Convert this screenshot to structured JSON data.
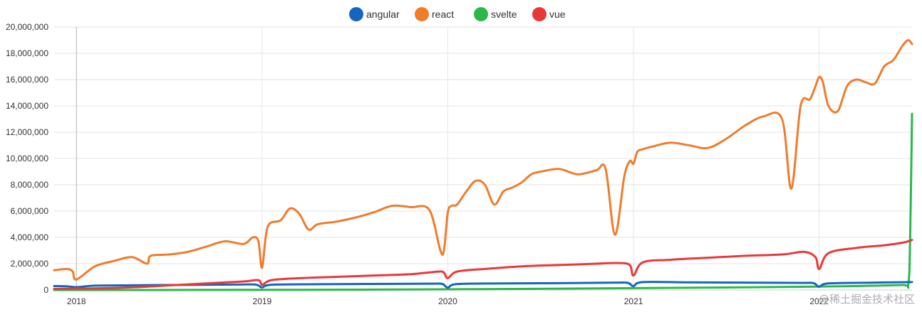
{
  "chart_data": {
    "type": "line",
    "title": "",
    "xlabel": "",
    "ylabel": "",
    "xlim": [
      2017.88,
      2022.5
    ],
    "ylim": [
      0,
      20000000
    ],
    "y_ticks": [
      0,
      2000000,
      4000000,
      6000000,
      8000000,
      10000000,
      12000000,
      14000000,
      16000000,
      18000000,
      20000000
    ],
    "y_tick_labels": [
      "0",
      "2,000,000",
      "4,000,000",
      "6,000,000",
      "8,000,000",
      "10,000,000",
      "12,000,000",
      "14,000,000",
      "16,000,000",
      "18,000,000",
      "20,000,000"
    ],
    "x_ticks": [
      2018,
      2019,
      2020,
      2021,
      2022
    ],
    "x_tick_labels": [
      "2018",
      "2019",
      "2020",
      "2021",
      "2022"
    ],
    "grid": true,
    "legend_position": "top-center",
    "series": [
      {
        "name": "angular",
        "color": "#1565c0",
        "x": [
          2017.88,
          2017.95,
          2018.0,
          2018.1,
          2018.3,
          2018.5,
          2018.7,
          2018.9,
          2018.97,
          2019.0,
          2019.05,
          2019.3,
          2019.6,
          2019.9,
          2019.97,
          2020.0,
          2020.05,
          2020.3,
          2020.6,
          2020.9,
          2020.97,
          2021.0,
          2021.05,
          2021.3,
          2021.6,
          2021.9,
          2021.97,
          2022.0,
          2022.05,
          2022.3,
          2022.5
        ],
        "y": [
          300000,
          280000,
          220000,
          330000,
          360000,
          380000,
          400000,
          420000,
          400000,
          200000,
          400000,
          440000,
          460000,
          480000,
          460000,
          180000,
          450000,
          500000,
          520000,
          560000,
          540000,
          300000,
          600000,
          580000,
          560000,
          540000,
          520000,
          250000,
          500000,
          560000,
          600000
        ]
      },
      {
        "name": "react",
        "color": "#f07c2a",
        "x": [
          2017.88,
          2017.95,
          2017.98,
          2018.0,
          2018.1,
          2018.2,
          2018.3,
          2018.38,
          2018.4,
          2018.5,
          2018.6,
          2018.7,
          2018.8,
          2018.9,
          2018.95,
          2018.98,
          2019.0,
          2019.03,
          2019.1,
          2019.15,
          2019.2,
          2019.25,
          2019.3,
          2019.4,
          2019.5,
          2019.6,
          2019.7,
          2019.8,
          2019.9,
          2019.96,
          2019.98,
          2020.0,
          2020.02,
          2020.05,
          2020.1,
          2020.15,
          2020.2,
          2020.25,
          2020.3,
          2020.35,
          2020.4,
          2020.45,
          2020.5,
          2020.6,
          2020.7,
          2020.8,
          2020.85,
          2020.9,
          2020.95,
          2020.98,
          2021.0,
          2021.02,
          2021.05,
          2021.1,
          2021.2,
          2021.3,
          2021.4,
          2021.5,
          2021.6,
          2021.7,
          2021.8,
          2021.85,
          2021.9,
          2021.95,
          2021.98,
          2022.0,
          2022.02,
          2022.05,
          2022.1,
          2022.15,
          2022.2,
          2022.25,
          2022.3,
          2022.35,
          2022.4,
          2022.45,
          2022.48,
          2022.5
        ],
        "y": [
          1500000,
          1600000,
          1400000,
          800000,
          1800000,
          2200000,
          2500000,
          2000000,
          2600000,
          2700000,
          2900000,
          3300000,
          3700000,
          3500000,
          4000000,
          3700000,
          1700000,
          4800000,
          5300000,
          6200000,
          5800000,
          4600000,
          5000000,
          5200000,
          5500000,
          5900000,
          6400000,
          6300000,
          6100000,
          3000000,
          3100000,
          5900000,
          6400000,
          6500000,
          7500000,
          8300000,
          8000000,
          6500000,
          7500000,
          7800000,
          8200000,
          8800000,
          9000000,
          9200000,
          8800000,
          9100000,
          9200000,
          4200000,
          8600000,
          9800000,
          9600000,
          10500000,
          10700000,
          10900000,
          11200000,
          11000000,
          10800000,
          11500000,
          12500000,
          13200000,
          13000000,
          7700000,
          14000000,
          14500000,
          15500000,
          16200000,
          15800000,
          14000000,
          13600000,
          15500000,
          16000000,
          15800000,
          15700000,
          17000000,
          17500000,
          18600000,
          19000000,
          18700000
        ]
      },
      {
        "name": "svelte",
        "color": "#2ab84a",
        "x": [
          2017.88,
          2018.2,
          2018.6,
          2019.0,
          2019.4,
          2019.8,
          2020.2,
          2020.6,
          2021.0,
          2021.4,
          2021.8,
          2022.2,
          2022.45,
          2022.48,
          2022.49,
          2022.5
        ],
        "y": [
          0,
          0,
          5000,
          10000,
          20000,
          40000,
          70000,
          100000,
          140000,
          180000,
          230000,
          300000,
          380000,
          450000,
          4000000,
          13400000
        ]
      },
      {
        "name": "vue",
        "color": "#e8393a",
        "x": [
          2017.88,
          2018.1,
          2018.3,
          2018.5,
          2018.7,
          2018.9,
          2018.98,
          2019.0,
          2019.05,
          2019.2,
          2019.4,
          2019.6,
          2019.8,
          2019.95,
          2019.98,
          2020.0,
          2020.05,
          2020.2,
          2020.4,
          2020.6,
          2020.8,
          2020.92,
          2020.98,
          2021.0,
          2021.05,
          2021.2,
          2021.4,
          2021.6,
          2021.8,
          2021.92,
          2021.98,
          2022.0,
          2022.05,
          2022.2,
          2022.35,
          2022.45,
          2022.5
        ],
        "y": [
          80000,
          120000,
          200000,
          350000,
          500000,
          650000,
          750000,
          400000,
          750000,
          900000,
          1000000,
          1100000,
          1200000,
          1400000,
          1300000,
          900000,
          1400000,
          1600000,
          1800000,
          1900000,
          2000000,
          2050000,
          1900000,
          1100000,
          2100000,
          2300000,
          2450000,
          2600000,
          2700000,
          2900000,
          2500000,
          1600000,
          2800000,
          3200000,
          3400000,
          3600000,
          3800000
        ]
      }
    ]
  },
  "watermark": "@稀土掘金技术社区"
}
